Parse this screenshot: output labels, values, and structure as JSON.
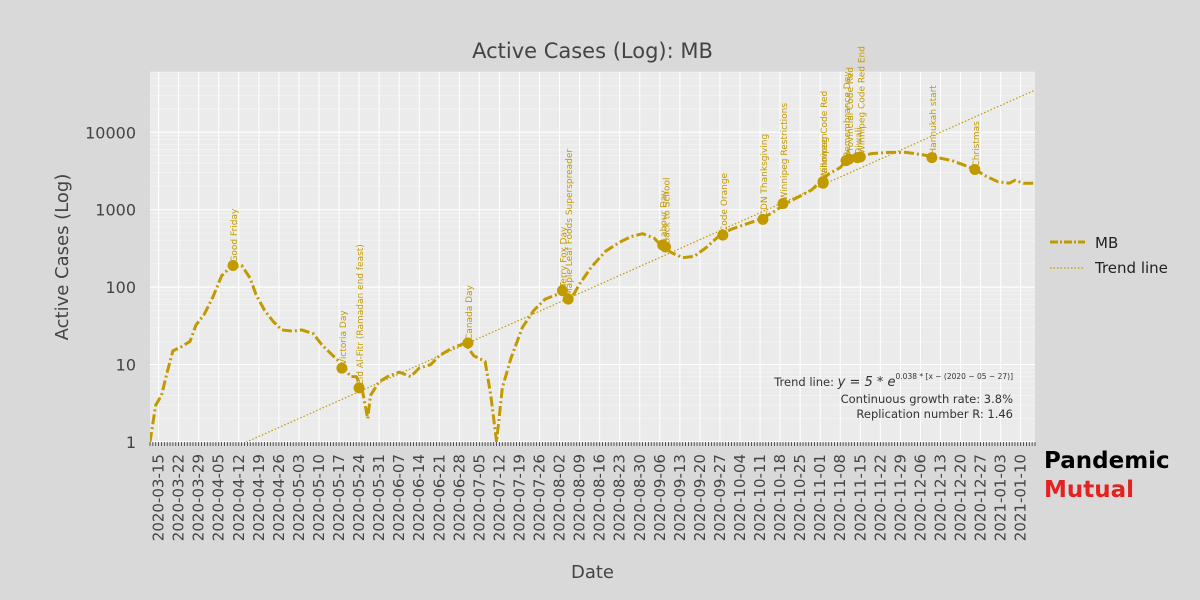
{
  "chart_data": {
    "type": "line",
    "title": "Active Cases (Log): MB",
    "xlabel": "Date",
    "ylabel": "Active Cases (Log)",
    "y_scale": "log",
    "ylim": [
      1,
      60000
    ],
    "xlim": [
      "2020-03-12",
      "2021-01-15"
    ],
    "grid": true,
    "legend_position": "right",
    "x_tick_labels": [
      "2020-03-15",
      "2020-03-22",
      "2020-03-29",
      "2020-04-05",
      "2020-04-12",
      "2020-04-19",
      "2020-04-26",
      "2020-05-03",
      "2020-05-10",
      "2020-05-17",
      "2020-05-24",
      "2020-05-31",
      "2020-06-07",
      "2020-06-14",
      "2020-06-21",
      "2020-06-28",
      "2020-07-05",
      "2020-07-12",
      "2020-07-19",
      "2020-07-26",
      "2020-08-02",
      "2020-08-09",
      "2020-08-16",
      "2020-08-23",
      "2020-08-30",
      "2020-09-06",
      "2020-09-13",
      "2020-09-20",
      "2020-09-27",
      "2020-10-04",
      "2020-10-11",
      "2020-10-18",
      "2020-10-25",
      "2020-11-01",
      "2020-11-08",
      "2020-11-15",
      "2020-11-22",
      "2020-11-29",
      "2020-12-06",
      "2020-12-13",
      "2020-12-20",
      "2020-12-27",
      "2021-01-03",
      "2021-01-10"
    ],
    "y_tick_labels": [
      "1",
      "10",
      "100",
      "1000",
      "10000"
    ],
    "y_tick_values": [
      1,
      10,
      100,
      1000,
      10000
    ],
    "series": [
      {
        "name": "MB",
        "color": "#c19a00",
        "style": "dash-dot",
        "points": [
          [
            "2020-03-12",
            1
          ],
          [
            "2020-03-14",
            3
          ],
          [
            "2020-03-16",
            4
          ],
          [
            "2020-03-18",
            8
          ],
          [
            "2020-03-20",
            15
          ],
          [
            "2020-03-23",
            17
          ],
          [
            "2020-03-26",
            20
          ],
          [
            "2020-03-28",
            32
          ],
          [
            "2020-03-31",
            45
          ],
          [
            "2020-04-03",
            75
          ],
          [
            "2020-04-06",
            140
          ],
          [
            "2020-04-09",
            180
          ],
          [
            "2020-04-13",
            190
          ],
          [
            "2020-04-16",
            130
          ],
          [
            "2020-04-18",
            80
          ],
          [
            "2020-04-21",
            50
          ],
          [
            "2020-04-24",
            36
          ],
          [
            "2020-04-27",
            28
          ],
          [
            "2020-05-01",
            27
          ],
          [
            "2020-05-04",
            28
          ],
          [
            "2020-05-08",
            25
          ],
          [
            "2020-05-11",
            18
          ],
          [
            "2020-05-14",
            14
          ],
          [
            "2020-05-17",
            11
          ],
          [
            "2020-05-19",
            9
          ],
          [
            "2020-05-21",
            7
          ],
          [
            "2020-05-23",
            7
          ],
          [
            "2020-05-25",
            5
          ],
          [
            "2020-05-27",
            2
          ],
          [
            "2020-05-28",
            4
          ],
          [
            "2020-05-31",
            6
          ],
          [
            "2020-06-03",
            7
          ],
          [
            "2020-06-07",
            8
          ],
          [
            "2020-06-11",
            7
          ],
          [
            "2020-06-14",
            9
          ],
          [
            "2020-06-18",
            10
          ],
          [
            "2020-06-21",
            13
          ],
          [
            "2020-06-25",
            16
          ],
          [
            "2020-06-30",
            19
          ],
          [
            "2020-07-03",
            13
          ],
          [
            "2020-07-07",
            11
          ],
          [
            "2020-07-09",
            4
          ],
          [
            "2020-07-11",
            1
          ],
          [
            "2020-07-13",
            5
          ],
          [
            "2020-07-16",
            12
          ],
          [
            "2020-07-20",
            30
          ],
          [
            "2020-07-24",
            50
          ],
          [
            "2020-07-28",
            70
          ],
          [
            "2020-08-01",
            80
          ],
          [
            "2020-08-03",
            85
          ],
          [
            "2020-08-06",
            70
          ],
          [
            "2020-08-09",
            110
          ],
          [
            "2020-08-13",
            180
          ],
          [
            "2020-08-18",
            290
          ],
          [
            "2020-08-23",
            380
          ],
          [
            "2020-08-27",
            450
          ],
          [
            "2020-08-31",
            490
          ],
          [
            "2020-09-04",
            430
          ],
          [
            "2020-09-07",
            330
          ],
          [
            "2020-09-10",
            280
          ],
          [
            "2020-09-14",
            240
          ],
          [
            "2020-09-18",
            250
          ],
          [
            "2020-09-22",
            320
          ],
          [
            "2020-09-27",
            470
          ],
          [
            "2020-10-01",
            560
          ],
          [
            "2020-10-06",
            650
          ],
          [
            "2020-10-11",
            750
          ],
          [
            "2020-10-15",
            900
          ],
          [
            "2020-10-20",
            1200
          ],
          [
            "2020-10-25",
            1500
          ],
          [
            "2020-10-29",
            1800
          ],
          [
            "2020-11-01",
            2300
          ],
          [
            "2020-11-04",
            2900
          ],
          [
            "2020-11-08",
            3500
          ],
          [
            "2020-11-10",
            4300
          ],
          [
            "2020-11-14",
            4800
          ],
          [
            "2020-11-19",
            5300
          ],
          [
            "2020-11-25",
            5500
          ],
          [
            "2020-12-01",
            5500
          ],
          [
            "2020-12-07",
            5100
          ],
          [
            "2020-12-12",
            4700
          ],
          [
            "2020-12-17",
            4300
          ],
          [
            "2020-12-21",
            3800
          ],
          [
            "2020-12-25",
            3300
          ],
          [
            "2020-12-29",
            2700
          ],
          [
            "2021-01-02",
            2300
          ],
          [
            "2021-01-06",
            2200
          ],
          [
            "2021-01-08",
            2400
          ],
          [
            "2021-01-11",
            2200
          ],
          [
            "2021-01-15",
            2200
          ]
        ]
      },
      {
        "name": "Trend line",
        "color": "#c19a00",
        "style": "dotted",
        "equation": {
          "a": 5,
          "k": 0.038,
          "origin": "2020-05-27"
        }
      }
    ],
    "annotations": [
      {
        "date": "2020-04-10",
        "value": 190,
        "label": "Good Friday"
      },
      {
        "date": "2020-05-18",
        "value": 9,
        "label": "Victoria Day"
      },
      {
        "date": "2020-05-24",
        "value": 5,
        "label": "Eid Al-Fitr (Ramadan end feast)"
      },
      {
        "date": "2020-07-01",
        "value": 19,
        "label": "Canada Day"
      },
      {
        "date": "2020-08-03",
        "value": 90,
        "label": "Terry Fox Day"
      },
      {
        "date": "2020-08-05",
        "value": 70,
        "label": "Maple Leaf Foods Superspreader"
      },
      {
        "date": "2020-09-07",
        "value": 350,
        "label": "Labour Day"
      },
      {
        "date": "2020-09-08",
        "value": 330,
        "label": "Back to School"
      },
      {
        "date": "2020-09-28",
        "value": 470,
        "label": "Code Orange"
      },
      {
        "date": "2020-10-12",
        "value": 750,
        "label": "CDN Thanksgiving"
      },
      {
        "date": "2020-10-19",
        "value": 1200,
        "label": "Winnipeg Restrictions"
      },
      {
        "date": "2020-11-02",
        "value": 2200,
        "label": "Halloween"
      },
      {
        "date": "2020-11-02",
        "value": 2300,
        "label": "Winnipeg Code Red"
      },
      {
        "date": "2020-11-10",
        "value": 4300,
        "label": "Remembrance Day"
      },
      {
        "date": "2020-11-11",
        "value": 4500,
        "label": "Provincial Code Red"
      },
      {
        "date": "2020-11-14",
        "value": 4700,
        "label": "Diwali"
      },
      {
        "date": "2020-11-15",
        "value": 4800,
        "label": "Winnipeg Code Red End"
      },
      {
        "date": "2020-12-10",
        "value": 4700,
        "label": "Hannukah start"
      },
      {
        "date": "2020-12-25",
        "value": 3300,
        "label": "Christmas"
      }
    ],
    "stats": {
      "trend_label": "Trend line: ",
      "trend_formula": "y = 5 * e",
      "trend_exponent": "0.038 * [x − (2020 − 05 − 27)]",
      "growth": "Continuous growth rate: 3.8%",
      "replication": "Replication number R: 1.46"
    }
  },
  "brand": {
    "line1": "Pandemic",
    "line2": "Mutual"
  }
}
